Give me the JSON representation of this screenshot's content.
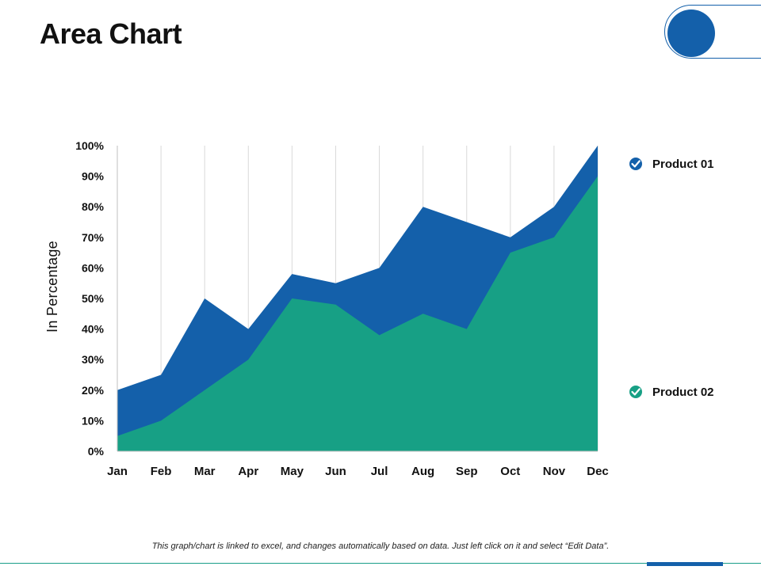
{
  "slide": {
    "title": "Area Chart",
    "footnote": "This graph/chart is linked to excel, and changes automatically based on data. Just left click on it and select “Edit Data”."
  },
  "chart_data": {
    "type": "area",
    "ylabel": "In Percentage",
    "xlabel": "",
    "ylim": [
      0,
      100
    ],
    "yticks": [
      "0%",
      "10%",
      "20%",
      "30%",
      "40%",
      "50%",
      "60%",
      "70%",
      "80%",
      "90%",
      "100%"
    ],
    "categories": [
      "Jan",
      "Feb",
      "Mar",
      "Apr",
      "May",
      "Jun",
      "Jul",
      "Aug",
      "Sep",
      "Oct",
      "Nov",
      "Dec"
    ],
    "grid": "vertical",
    "legend_placement": "right",
    "series": [
      {
        "name": "Product 01",
        "color": "#1460AA",
        "values": [
          20,
          25,
          50,
          40,
          58,
          55,
          60,
          80,
          75,
          70,
          80,
          100
        ]
      },
      {
        "name": "Product 02",
        "color": "#17A085",
        "values": [
          5,
          10,
          20,
          30,
          50,
          48,
          38,
          45,
          40,
          65,
          70,
          90
        ]
      }
    ]
  },
  "colors": {
    "primary_blue": "#1460AA",
    "teal": "#17A085"
  },
  "icons": {
    "legend_marker": "check-circle-icon",
    "decoration": "blue-circle-icon"
  }
}
